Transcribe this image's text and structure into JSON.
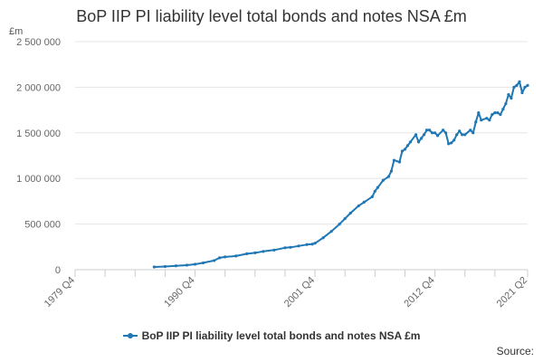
{
  "chart_data": {
    "type": "line",
    "title": "BoP IIP PI liability level total bonds and notes NSA £m",
    "y_unit": "£m",
    "source_label": "Source:",
    "xlim": [
      1979.75,
      2021.25
    ],
    "ylim": [
      0,
      2500000
    ],
    "y_ticks": [
      0,
      500000,
      1000000,
      1500000,
      2000000,
      2500000
    ],
    "y_tick_labels": [
      "0",
      "500 000",
      "1 000 000",
      "1 500 000",
      "2 000 000",
      "2 500 000"
    ],
    "x_tick_positions": [
      1979.75,
      1982.5,
      1985.25,
      1988.0,
      1990.75,
      1993.5,
      1996.25,
      1999.0,
      2001.75,
      2004.5,
      2007.25,
      2010.0,
      2012.75,
      2015.5,
      2018.25,
      2021.25
    ],
    "x_labels": [
      {
        "x": 1979.75,
        "label": "1979 Q4"
      },
      {
        "x": 1990.75,
        "label": "1990 Q4"
      },
      {
        "x": 2001.75,
        "label": "2001 Q4"
      },
      {
        "x": 2012.75,
        "label": "2012 Q4"
      },
      {
        "x": 2021.25,
        "label": "2021 Q2"
      }
    ],
    "grid": true,
    "legend_position": "bottom",
    "color": "#1f77b4",
    "series": [
      {
        "name": "BoP IIP PI liability level total bonds and notes NSA £m",
        "x": [
          1987.0,
          1988.0,
          1989.0,
          1990.0,
          1990.75,
          1991.5,
          1992.5,
          1993.0,
          1993.5,
          1994.5,
          1995.5,
          1996.25,
          1997.0,
          1998.0,
          1999.0,
          1999.5,
          2000.25,
          2001.0,
          2001.5,
          2001.75,
          2002.5,
          2003.25,
          2004.0,
          2004.5,
          2005.0,
          2005.75,
          2006.25,
          2007.0,
          2007.25,
          2007.5,
          2008.0,
          2008.5,
          2008.75,
          2009.0,
          2009.5,
          2009.75,
          2010.0,
          2010.25,
          2010.5,
          2011.0,
          2011.25,
          2011.5,
          2011.75,
          2012.0,
          2012.25,
          2012.5,
          2012.75,
          2013.0,
          2013.5,
          2013.75,
          2014.0,
          2014.25,
          2014.5,
          2014.75,
          2015.0,
          2015.25,
          2015.5,
          2016.0,
          2016.25,
          2016.5,
          2016.75,
          2017.0,
          2017.5,
          2017.75,
          2018.0,
          2018.25,
          2018.5,
          2018.75,
          2019.0,
          2019.25,
          2019.5,
          2019.75,
          2020.0,
          2020.25,
          2020.5,
          2020.75,
          2021.0,
          2021.25
        ],
        "values": [
          30000,
          35000,
          42000,
          50000,
          60000,
          75000,
          100000,
          130000,
          140000,
          150000,
          175000,
          185000,
          200000,
          215000,
          240000,
          245000,
          260000,
          275000,
          280000,
          290000,
          350000,
          420000,
          500000,
          560000,
          620000,
          700000,
          740000,
          800000,
          860000,
          900000,
          980000,
          1020000,
          1080000,
          1200000,
          1180000,
          1300000,
          1320000,
          1360000,
          1400000,
          1480000,
          1400000,
          1440000,
          1480000,
          1530000,
          1530000,
          1500000,
          1500000,
          1470000,
          1530000,
          1500000,
          1380000,
          1390000,
          1420000,
          1480000,
          1520000,
          1480000,
          1480000,
          1530000,
          1500000,
          1620000,
          1720000,
          1640000,
          1660000,
          1640000,
          1700000,
          1720000,
          1720000,
          1700000,
          1760000,
          1820000,
          1920000,
          1880000,
          2000000,
          2020000,
          2060000,
          1940000,
          2000000,
          2020000
        ]
      }
    ]
  }
}
